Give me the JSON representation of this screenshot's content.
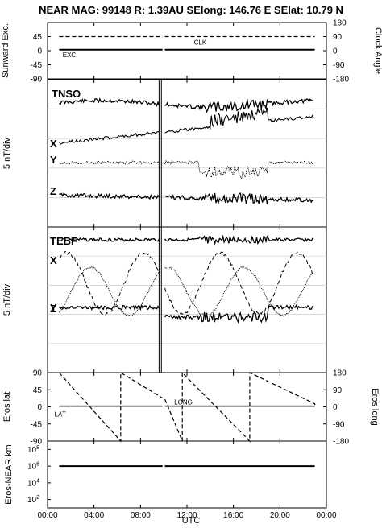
{
  "figure": {
    "title": "NEAR MAG: 99148  R: 1.39AU  SElong: 146.76 E  SElat:  10.79 N",
    "xlabel": "UTC",
    "x_ticks": [
      "00:00",
      "04:00",
      "08:00",
      "12:00",
      "16:00",
      "20:00",
      "00:00"
    ]
  },
  "chart_data": [
    {
      "id": "panel1",
      "type": "line",
      "ylabel_left": "Sunward Exc.",
      "ylabel_right": "Clock Angle",
      "left_ticks": [
        "45",
        "0",
        "-45",
        "-90"
      ],
      "right_ticks": [
        "180",
        "90",
        "0",
        "-90",
        "-180"
      ],
      "ylim": [
        -90,
        90
      ],
      "xlim_hours": [
        0,
        24
      ],
      "series": [
        {
          "name": "CLK",
          "style": "dashed",
          "x": [
            1,
            9.9,
            10.1,
            23
          ],
          "y": [
            45,
            45,
            45,
            45
          ]
        },
        {
          "name": "EXC.",
          "style": "solid",
          "x": [
            1,
            9.9,
            10.1,
            23
          ],
          "y": [
            3,
            3,
            3,
            3
          ]
        }
      ],
      "annotations": [
        "CLK",
        "EXC."
      ]
    },
    {
      "id": "panel2",
      "type": "line",
      "ylabel_left": "5 nT/div",
      "label": "TNSO",
      "series_labels": [
        "T",
        "X",
        "Y",
        "Z"
      ],
      "gap_hours": [
        9.6,
        10.0
      ]
    },
    {
      "id": "panel3",
      "type": "line",
      "ylabel_left": "5 nT/div",
      "label": "TEBF",
      "series_labels": [
        "T",
        "X",
        "Y",
        "Z"
      ],
      "gap_hours": [
        9.6,
        10.0
      ]
    },
    {
      "id": "panel4",
      "type": "line",
      "ylabel_left": "Eros lat",
      "ylabel_right": "Eros long",
      "left_ticks": [
        "90",
        "45",
        "0",
        "-45",
        "-90"
      ],
      "right_ticks": [
        "180",
        "90",
        "0",
        "-90",
        "-180"
      ],
      "ylim": [
        -90,
        90
      ],
      "xlim_hours": [
        0,
        24
      ],
      "series": [
        {
          "name": "LAT",
          "style": "solid",
          "x": [
            1,
            9.9,
            10.1,
            23
          ],
          "y": [
            -3,
            -3,
            -3,
            -3
          ]
        },
        {
          "name": "LONG",
          "style": "dashed",
          "x": [
            1,
            6.3,
            6.3,
            9.9,
            10.1,
            11.6,
            11.6,
            17.4,
            17.4,
            23,
            23
          ],
          "y": [
            90,
            -90,
            90,
            23,
            20,
            -90,
            90,
            -90,
            90,
            8,
            5
          ]
        }
      ],
      "annotations": [
        "LAT",
        "LONG"
      ]
    },
    {
      "id": "panel5",
      "type": "line",
      "ylabel_left": "Eros-NEAR km",
      "y_scale": "log",
      "left_ticks": [
        "10^8",
        "10^6",
        "10^4",
        "10^2"
      ],
      "ylim": [
        10,
        1000000000
      ],
      "xlim_hours": [
        0,
        24
      ],
      "series": [
        {
          "name": "distance",
          "style": "solid",
          "x": [
            1,
            9.9,
            10.1,
            23
          ],
          "y": [
            1000000,
            1000000,
            1000000,
            1000000
          ]
        }
      ]
    }
  ]
}
